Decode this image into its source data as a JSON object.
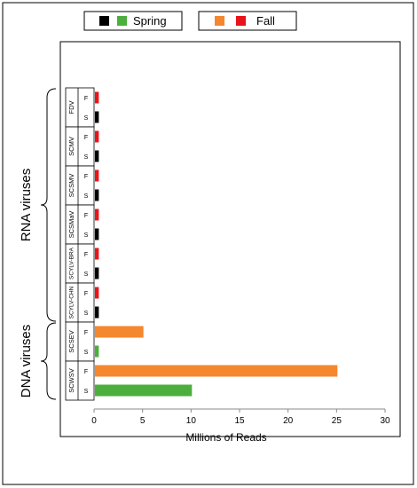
{
  "legend": {
    "group1": {
      "label": "Spring",
      "colors": [
        "#000000",
        "#4caf3d"
      ]
    },
    "group2": {
      "label": "Fall",
      "colors": [
        "#f5872f",
        "#e8141a"
      ]
    }
  },
  "groups": [
    {
      "name": "RNA viruses",
      "virus_range": [
        0,
        5
      ]
    },
    {
      "name": "DNA viruses",
      "virus_range": [
        6,
        7
      ]
    }
  ],
  "colors": {
    "fall_rna": "#e8141a",
    "spring_rna": "#000000",
    "fall_dna": "#f5872f",
    "spring_dna": "#4caf3d"
  },
  "chart_data": {
    "type": "bar",
    "orientation": "horizontal",
    "xlabel": "Millions of Reads",
    "xlim": [
      0,
      30
    ],
    "xticks": [
      0,
      5,
      10,
      15,
      20,
      25,
      30
    ],
    "grid": false,
    "viruses": [
      "FDV",
      "SCMV",
      "SCSMV",
      "SCSMaV",
      "SCYLV-BRA",
      "SCYLV-CHN",
      "SCSEV",
      "SCWSV"
    ],
    "season_labels": [
      "F",
      "S"
    ],
    "series": [
      {
        "name": "Fall",
        "values": [
          0.4,
          0.4,
          0.4,
          0.4,
          0.4,
          0.4,
          5.0,
          25.0
        ]
      },
      {
        "name": "Spring",
        "values": [
          0.4,
          0.4,
          0.4,
          0.4,
          0.4,
          0.4,
          0.4,
          10.0
        ]
      }
    ]
  }
}
